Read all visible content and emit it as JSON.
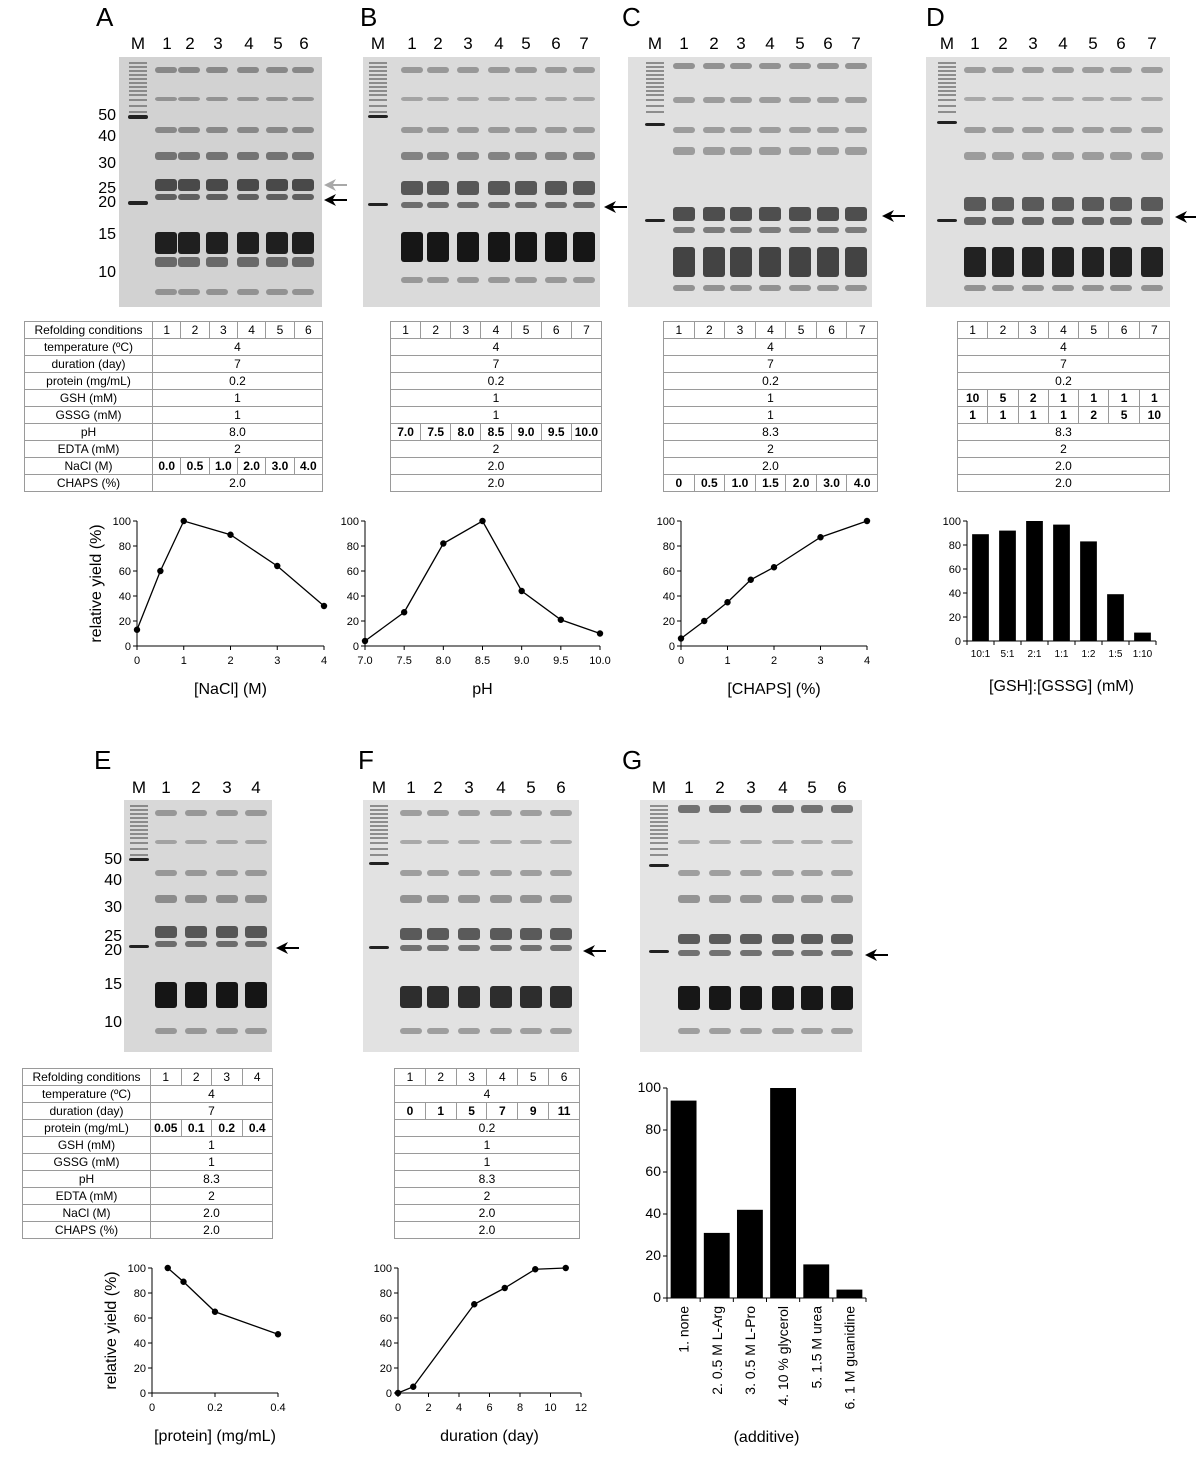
{
  "panels": [
    {
      "letter": "A",
      "marker": "M",
      "lanes": [
        "1",
        "2",
        "3",
        "4",
        "5",
        "6"
      ],
      "mw_labels": [
        "50",
        "40",
        "30",
        "25",
        "20",
        "15",
        "10"
      ],
      "table": {
        "header": [
          "Refolding conditions",
          "1",
          "2",
          "3",
          "4",
          "5",
          "6"
        ],
        "rows": [
          [
            "temperature (ºC)",
            "4"
          ],
          [
            "duration (day)",
            "7"
          ],
          [
            "protein (mg/mL)",
            "0.2"
          ],
          [
            "GSH (mM)",
            "1"
          ],
          [
            "GSSG (mM)",
            "1"
          ],
          [
            "pH",
            "8.0"
          ],
          [
            "EDTA (mM)",
            "2"
          ],
          [
            "NaCl (M)",
            "0.0",
            "0.5",
            "1.0",
            "2.0",
            "3.0",
            "4.0"
          ],
          [
            "CHAPS (%)",
            "2.0"
          ]
        ]
      }
    },
    {
      "letter": "B",
      "marker": "M",
      "lanes": [
        "1",
        "2",
        "3",
        "4",
        "5",
        "6",
        "7"
      ],
      "table": {
        "header": [
          "1",
          "2",
          "3",
          "4",
          "5",
          "6",
          "7"
        ],
        "rows": [
          [
            "4"
          ],
          [
            "7"
          ],
          [
            "0.2"
          ],
          [
            "1"
          ],
          [
            "1"
          ],
          [
            "7.0",
            "7.5",
            "8.0",
            "8.5",
            "9.0",
            "9.5",
            "10.0"
          ],
          [
            "2"
          ],
          [
            "2.0"
          ],
          [
            "2.0"
          ]
        ]
      }
    },
    {
      "letter": "C",
      "marker": "M",
      "lanes": [
        "1",
        "2",
        "3",
        "4",
        "5",
        "6",
        "7"
      ],
      "table": {
        "header": [
          "1",
          "2",
          "3",
          "4",
          "5",
          "6",
          "7"
        ],
        "rows": [
          [
            "4"
          ],
          [
            "7"
          ],
          [
            "0.2"
          ],
          [
            "1"
          ],
          [
            "1"
          ],
          [
            "8.3"
          ],
          [
            "2"
          ],
          [
            "2.0"
          ],
          [
            "0",
            "0.5",
            "1.0",
            "1.5",
            "2.0",
            "3.0",
            "4.0"
          ]
        ]
      }
    },
    {
      "letter": "D",
      "marker": "M",
      "lanes": [
        "1",
        "2",
        "3",
        "4",
        "5",
        "6",
        "7"
      ],
      "table": {
        "header": [
          "1",
          "2",
          "3",
          "4",
          "5",
          "6",
          "7"
        ],
        "rows": [
          [
            "4"
          ],
          [
            "7"
          ],
          [
            "0.2"
          ],
          [
            "10",
            "5",
            "2",
            "1",
            "1",
            "1",
            "1"
          ],
          [
            "1",
            "1",
            "1",
            "1",
            "2",
            "5",
            "10"
          ],
          [
            "8.3"
          ],
          [
            "2"
          ],
          [
            "2.0"
          ],
          [
            "2.0"
          ]
        ]
      }
    },
    {
      "letter": "E",
      "marker": "M",
      "lanes": [
        "1",
        "2",
        "3",
        "4"
      ],
      "mw_labels": [
        "50",
        "40",
        "30",
        "25",
        "20",
        "15",
        "10"
      ],
      "table": {
        "header": [
          "Refolding conditions",
          "1",
          "2",
          "3",
          "4"
        ],
        "rows": [
          [
            "temperature (ºC)",
            "4"
          ],
          [
            "duration (day)",
            "7"
          ],
          [
            "protein (mg/mL)",
            "0.05",
            "0.1",
            "0.2",
            "0.4"
          ],
          [
            "GSH (mM)",
            "1"
          ],
          [
            "GSSG (mM)",
            "1"
          ],
          [
            "pH",
            "8.3"
          ],
          [
            "EDTA (mM)",
            "2"
          ],
          [
            "NaCl (M)",
            "2.0"
          ],
          [
            "CHAPS (%)",
            "2.0"
          ]
        ]
      }
    },
    {
      "letter": "F",
      "marker": "M",
      "lanes": [
        "1",
        "2",
        "3",
        "4",
        "5",
        "6"
      ],
      "table": {
        "header": [
          "1",
          "2",
          "3",
          "4",
          "5",
          "6"
        ],
        "rows": [
          [
            "4"
          ],
          [
            "0",
            "1",
            "5",
            "7",
            "9",
            "11"
          ],
          [
            "0.2"
          ],
          [
            "1"
          ],
          [
            "1"
          ],
          [
            "8.3"
          ],
          [
            "2"
          ],
          [
            "2.0"
          ],
          [
            "2.0"
          ]
        ]
      }
    },
    {
      "letter": "G",
      "marker": "M",
      "lanes": [
        "1",
        "2",
        "3",
        "4",
        "5",
        "6"
      ]
    }
  ],
  "chart_data": [
    {
      "panel": "A",
      "type": "line",
      "x": [
        0,
        0.5,
        1,
        2,
        3,
        4
      ],
      "y": [
        13,
        60,
        100,
        89,
        64,
        32
      ],
      "xlabel": "[NaCl] (M)",
      "ylabel": "relative yield (%)",
      "xlim": [
        0,
        4
      ],
      "ylim": [
        0,
        100
      ],
      "xticks": [
        "0",
        "1",
        "2",
        "3",
        "4"
      ],
      "yticks": [
        "0",
        "20",
        "40",
        "60",
        "80",
        "100"
      ]
    },
    {
      "panel": "B",
      "type": "line",
      "x": [
        7.0,
        7.5,
        8.0,
        8.5,
        9.0,
        9.5,
        10.0
      ],
      "y": [
        4,
        27,
        82,
        100,
        44,
        21,
        10
      ],
      "xlabel": "pH",
      "ylabel": "",
      "xlim": [
        7,
        10
      ],
      "ylim": [
        0,
        100
      ],
      "xticks": [
        "7.0",
        "7.5",
        "8.0",
        "8.5",
        "9.0",
        "9.5",
        "10.0"
      ],
      "yticks": [
        "0",
        "20",
        "40",
        "60",
        "80",
        "100"
      ]
    },
    {
      "panel": "C",
      "type": "line",
      "x": [
        0,
        0.5,
        1.0,
        1.5,
        2.0,
        3.0,
        4.0
      ],
      "y": [
        6,
        20,
        35,
        53,
        63,
        87,
        100
      ],
      "xlabel": "[CHAPS] (%)",
      "ylabel": "",
      "xlim": [
        0,
        4
      ],
      "ylim": [
        0,
        100
      ],
      "xticks": [
        "0",
        "1",
        "2",
        "3",
        "4"
      ],
      "yticks": [
        "0",
        "20",
        "40",
        "60",
        "80",
        "100"
      ]
    },
    {
      "panel": "D",
      "type": "bar",
      "categories": [
        "10:1",
        "5:1",
        "2:1",
        "1:1",
        "1:2",
        "1:5",
        "1:10"
      ],
      "values": [
        89,
        92,
        100,
        97,
        83,
        39,
        7
      ],
      "xlabel": "[GSH]:[GSSG] (mM)",
      "ylabel": "",
      "ylim": [
        0,
        100
      ],
      "yticks": [
        "0",
        "20",
        "40",
        "60",
        "80",
        "100"
      ]
    },
    {
      "panel": "E",
      "type": "line",
      "x": [
        0.05,
        0.1,
        0.2,
        0.4
      ],
      "y": [
        100,
        89,
        65,
        47
      ],
      "xlabel": "[protein] (mg/mL)",
      "ylabel": "relative yield (%)",
      "xlim": [
        0,
        0.4
      ],
      "ylim": [
        0,
        100
      ],
      "xticks": [
        "0",
        "0.2",
        "0.4"
      ],
      "yticks": [
        "0",
        "20",
        "40",
        "60",
        "80",
        "100"
      ]
    },
    {
      "panel": "F",
      "type": "line",
      "x": [
        0,
        1,
        5,
        7,
        9,
        11
      ],
      "y": [
        0,
        5,
        71,
        84,
        99,
        100
      ],
      "xlabel": "duration (day)",
      "ylabel": "",
      "xlim": [
        0,
        12
      ],
      "ylim": [
        0,
        100
      ],
      "xticks": [
        "0",
        "2",
        "4",
        "6",
        "8",
        "10",
        "12"
      ],
      "yticks": [
        "0",
        "20",
        "40",
        "60",
        "80",
        "100"
      ]
    },
    {
      "panel": "G",
      "type": "bar",
      "categories": [
        "1. none",
        "2. 0.5 M L-Arg",
        "3. 0.5 M L-Pro",
        "4. 10 % glycerol",
        "5. 1.5 M urea",
        "6. 1 M guanidine"
      ],
      "values": [
        94,
        31,
        42,
        100,
        16,
        4
      ],
      "xlabel": "(additive)",
      "ylabel": "",
      "ylim": [
        0,
        100
      ],
      "yticks": [
        "0",
        "20",
        "40",
        "60",
        "80",
        "100"
      ]
    }
  ]
}
